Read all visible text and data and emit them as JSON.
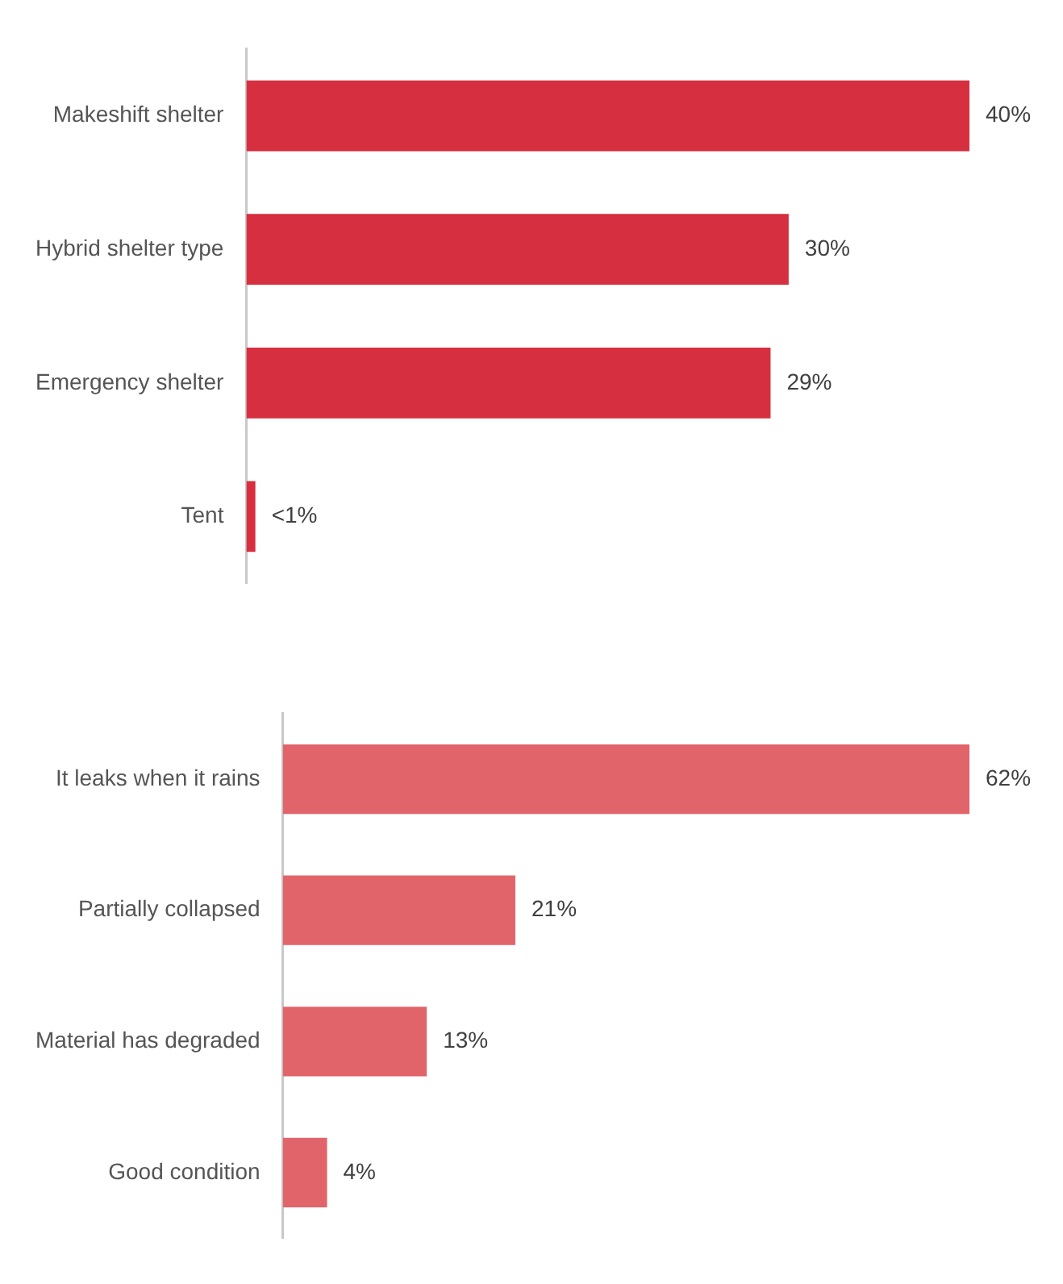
{
  "chart_data": [
    {
      "type": "bar",
      "orientation": "horizontal",
      "categories": [
        "Makeshift shelter",
        "Hybrid shelter type",
        "Emergency shelter",
        "Tent"
      ],
      "values": [
        40,
        30,
        29,
        0.5
      ],
      "value_labels": [
        "40%",
        "30%",
        "29%",
        "<1%"
      ],
      "color": "#d62f3f"
    },
    {
      "type": "bar",
      "orientation": "horizontal",
      "categories": [
        "It leaks when it rains",
        "Partially collapsed",
        "Material has degraded",
        "Good condition"
      ],
      "values": [
        62,
        21,
        13,
        4
      ],
      "value_labels": [
        "62%",
        "21%",
        "13%",
        "4%"
      ],
      "color": "#e0646a"
    }
  ]
}
